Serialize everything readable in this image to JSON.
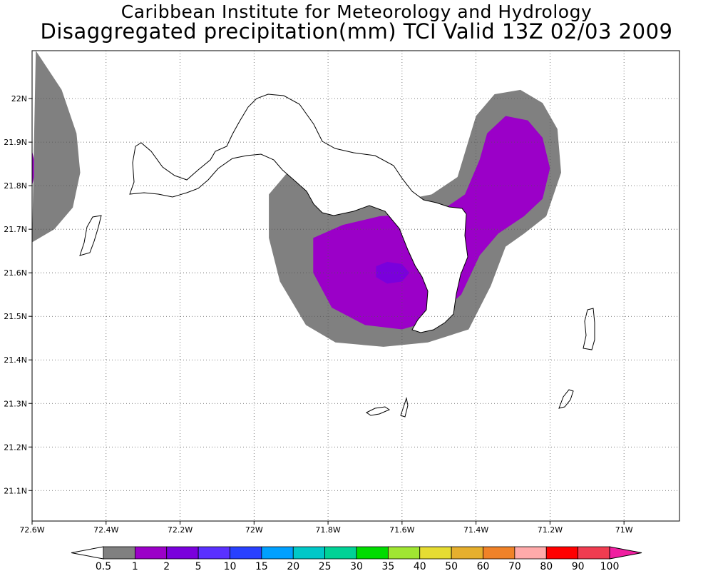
{
  "title_line1": "Caribbean Institute for Meteorology and Hydrology",
  "title_line2": "Disaggregated precipitation(mm) TCI Valid 13Z 02/03 2009",
  "lon_ticks": [
    {
      "value": -72.6,
      "label": "72.6W"
    },
    {
      "value": -72.4,
      "label": "72.4W"
    },
    {
      "value": -72.2,
      "label": "72.2W"
    },
    {
      "value": -72.0,
      "label": "72W"
    },
    {
      "value": -71.8,
      "label": "71.8W"
    },
    {
      "value": -71.6,
      "label": "71.6W"
    },
    {
      "value": -71.4,
      "label": "71.4W"
    },
    {
      "value": -71.2,
      "label": "71.2W"
    },
    {
      "value": -71.0,
      "label": "71W"
    }
  ],
  "lat_ticks": [
    {
      "value": 22.0,
      "label": "22N"
    },
    {
      "value": 21.9,
      "label": "21.9N"
    },
    {
      "value": 21.8,
      "label": "21.8N"
    },
    {
      "value": 21.7,
      "label": "21.7N"
    },
    {
      "value": 21.6,
      "label": "21.6N"
    },
    {
      "value": 21.5,
      "label": "21.5N"
    },
    {
      "value": 21.4,
      "label": "21.4N"
    },
    {
      "value": 21.3,
      "label": "21.3N"
    },
    {
      "value": 21.2,
      "label": "21.2N"
    },
    {
      "value": 21.1,
      "label": "21.1N"
    }
  ],
  "colorbar": {
    "labels": [
      "0.5",
      "1",
      "2",
      "5",
      "10",
      "15",
      "20",
      "25",
      "30",
      "35",
      "40",
      "50",
      "60",
      "70",
      "80",
      "90",
      "100"
    ],
    "colors": [
      "#808080",
      "#9b00c8",
      "#7a00dc",
      "#5a30ff",
      "#2840ff",
      "#00a0ff",
      "#00c8c8",
      "#00d296",
      "#00dc00",
      "#a0e632",
      "#e6dc32",
      "#e6af2d",
      "#f08228",
      "#ffaaaa",
      "#ff0000",
      "#f03c50"
    ],
    "low_color": "#ffffff",
    "high_color": "#f01ea0"
  },
  "chart_data": {
    "type": "heatmap",
    "title": "Caribbean Institute for Meteorology and Hydrology",
    "subtitle": "Disaggregated precipitation(mm) TCI Valid 13Z 02/03 2009",
    "xlim": [
      -72.6,
      -70.85
    ],
    "ylim": [
      21.03,
      22.11
    ],
    "grid": true,
    "legend": "bottom colorbar",
    "units": "mm",
    "regions": [
      {
        "level": "0.5-1",
        "color": "#808080",
        "polygon": [
          [
            -72.59,
            22.11
          ],
          [
            -72.52,
            22.02
          ],
          [
            -72.48,
            21.92
          ],
          [
            -72.47,
            21.83
          ],
          [
            -72.49,
            21.75
          ],
          [
            -72.54,
            21.7
          ],
          [
            -72.6,
            21.67
          ]
        ]
      },
      {
        "level": "1-2",
        "color": "#9b00c8",
        "polygon": [
          [
            -72.6,
            21.88
          ],
          [
            -72.595,
            21.86
          ],
          [
            -72.595,
            21.82
          ],
          [
            -72.6,
            21.8
          ]
        ]
      },
      {
        "level": "0.5-1",
        "color": "#808080",
        "polygon": [
          [
            -71.9,
            21.84
          ],
          [
            -71.85,
            21.82
          ],
          [
            -71.75,
            21.79
          ],
          [
            -71.68,
            21.77
          ],
          [
            -71.58,
            21.77
          ],
          [
            -71.52,
            21.78
          ],
          [
            -71.45,
            21.82
          ],
          [
            -71.4,
            21.96
          ],
          [
            -71.35,
            22.01
          ],
          [
            -71.28,
            22.02
          ],
          [
            -71.22,
            21.99
          ],
          [
            -71.18,
            21.93
          ],
          [
            -71.17,
            21.83
          ],
          [
            -71.21,
            21.73
          ],
          [
            -71.27,
            21.69
          ],
          [
            -71.32,
            21.66
          ],
          [
            -71.36,
            21.57
          ],
          [
            -71.42,
            21.47
          ],
          [
            -71.53,
            21.44
          ],
          [
            -71.65,
            21.43
          ],
          [
            -71.78,
            21.44
          ],
          [
            -71.86,
            21.48
          ],
          [
            -71.93,
            21.58
          ],
          [
            -71.96,
            21.68
          ],
          [
            -71.96,
            21.78
          ]
        ]
      },
      {
        "level": "1-2",
        "color": "#9b00c8",
        "polygon": [
          [
            -71.84,
            21.68
          ],
          [
            -71.76,
            21.71
          ],
          [
            -71.66,
            21.73
          ],
          [
            -71.56,
            21.735
          ],
          [
            -71.49,
            21.745
          ],
          [
            -71.43,
            21.78
          ],
          [
            -71.39,
            21.86
          ],
          [
            -71.37,
            21.92
          ],
          [
            -71.32,
            21.96
          ],
          [
            -71.26,
            21.95
          ],
          [
            -71.22,
            21.91
          ],
          [
            -71.2,
            21.84
          ],
          [
            -71.22,
            21.77
          ],
          [
            -71.27,
            21.73
          ],
          [
            -71.34,
            21.69
          ],
          [
            -71.39,
            21.64
          ],
          [
            -71.44,
            21.55
          ],
          [
            -71.52,
            21.49
          ],
          [
            -71.6,
            21.47
          ],
          [
            -71.7,
            21.48
          ],
          [
            -71.79,
            21.52
          ],
          [
            -71.84,
            21.6
          ]
        ]
      },
      {
        "level": "2-5",
        "color": "#7a00dc",
        "polygon": [
          [
            -71.67,
            21.615
          ],
          [
            -71.64,
            21.625
          ],
          [
            -71.6,
            21.62
          ],
          [
            -71.58,
            21.6
          ],
          [
            -71.6,
            21.58
          ],
          [
            -71.64,
            21.575
          ],
          [
            -71.67,
            21.59
          ]
        ]
      }
    ]
  }
}
